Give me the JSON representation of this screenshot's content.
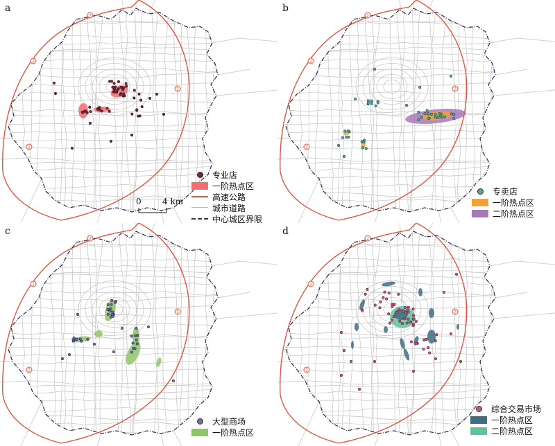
{
  "colors": {
    "road": "#c9c9c9",
    "expressway": "#e3543d",
    "boundary": "#3a2d5e",
    "pt_red": "#f26f6f",
    "pt_orange": "#f5a030",
    "pt_purple": "#a978b8",
    "pt_green": "#8fc467",
    "pt_blue": "#3f6d83",
    "pt_teal": "#62c29a",
    "dot_dark": "#6a2a3e",
    "dot_cyan": "#52a7a5",
    "dot_purple": "#6d6fa7",
    "dot_pink": "#c25b7e"
  },
  "panels": [
    {
      "label": "a",
      "legend": {
        "point": "专业店",
        "hot1": "一阶热点区",
        "expressway": "高速公路",
        "road": "城市道路",
        "boundary": "中心城区界限"
      }
    },
    {
      "label": "b",
      "legend": {
        "point": "专卖店",
        "hot1": "一阶热点区",
        "hot2": "二阶热点区"
      }
    },
    {
      "label": "c",
      "legend": {
        "point": "大型商场",
        "hot1": "一阶热点区"
      }
    },
    {
      "label": "d",
      "legend": {
        "point": "综合交易市场",
        "hot1": "一阶热点区",
        "hot2": "二阶热点区"
      }
    }
  ],
  "scale": {
    "zero": "0",
    "dist": "4 km"
  },
  "map_markers": {
    "ring_number": "2"
  }
}
